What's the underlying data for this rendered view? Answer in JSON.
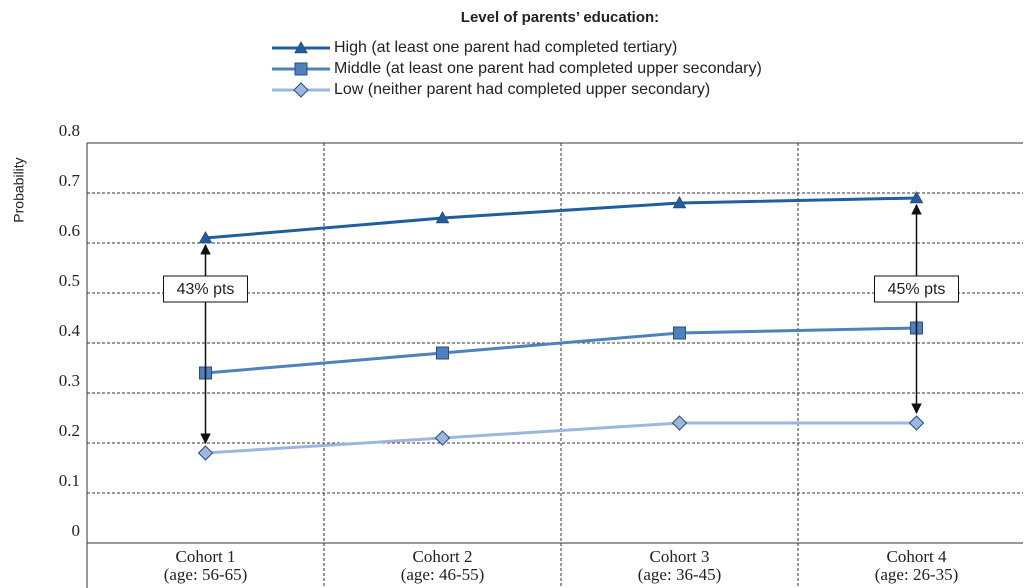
{
  "chart_data": {
    "type": "line",
    "legend_title": "Level of parents’ education:",
    "y_label": "Probability",
    "categories": [
      "Cohort 1",
      "Cohort 2",
      "Cohort 3",
      "Cohort 4"
    ],
    "category_ages": [
      "(age: 56-65)",
      "(age: 46-55)",
      "(age: 36-45)",
      "(age: 26-35)"
    ],
    "series": [
      {
        "name": "High (at least one parent had completed tertiary)",
        "color": "#1f5f9e",
        "marker": "triangle",
        "values": [
          0.61,
          0.65,
          0.68,
          0.69
        ]
      },
      {
        "name": "Middle (at least one parent had completed upper secondary)",
        "color": "#4f81bd",
        "marker": "square",
        "values": [
          0.34,
          0.38,
          0.42,
          0.43
        ]
      },
      {
        "name": "Low (neither parent had completed upper secondary)",
        "color": "#9bb7dd",
        "marker": "diamond",
        "values": [
          0.18,
          0.21,
          0.24,
          0.24
        ]
      }
    ],
    "annotations": [
      "43% pts",
      "45% pts"
    ],
    "ylim": [
      0,
      0.8
    ],
    "yticks": [
      0,
      0.1,
      0.2,
      0.3,
      0.4,
      0.5,
      0.6,
      0.7,
      0.8
    ],
    "grid": true
  }
}
